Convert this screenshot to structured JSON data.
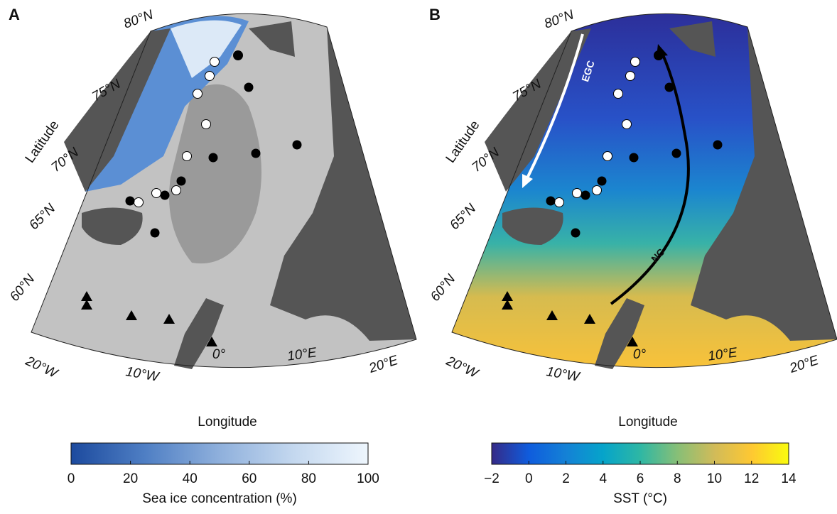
{
  "panels": [
    {
      "label": "A",
      "lat_labels": [
        "80°N",
        "75°N",
        "70°N",
        "65°N",
        "60°N"
      ],
      "lon_labels": [
        "20°W",
        "10°W",
        "0°",
        "10°E",
        "20°E"
      ],
      "x_axis_label": "Longitude",
      "y_axis_label": "Latitude",
      "colorbar": {
        "label": "Sea ice concentration (%)",
        "lim": [
          0,
          100
        ],
        "ticks": [
          0,
          20,
          40,
          60,
          80,
          100
        ],
        "colors": [
          "#1c4a9e",
          "#4f7fc4",
          "#8fb0dc",
          "#c4d8ef",
          "#eef6fd"
        ]
      }
    },
    {
      "label": "B",
      "lat_labels": [
        "80°N",
        "75°N",
        "70°N",
        "65°N",
        "60°N"
      ],
      "lon_labels": [
        "20°W",
        "10°W",
        "0°",
        "10°E",
        "20°E"
      ],
      "x_axis_label": "Longitude",
      "y_axis_label": "Latitude",
      "annotations": [
        "EGC",
        "NC"
      ],
      "colorbar": {
        "label": "SST (°C)",
        "lim": [
          -2,
          14
        ],
        "ticks": [
          {
            "value": -2,
            "label": "−2"
          },
          0,
          2,
          4,
          6,
          8,
          10,
          12,
          14
        ],
        "colors": [
          "#352a87",
          "#0f5cdd",
          "#1481d6",
          "#06a4ca",
          "#2eb7a4",
          "#87bf77",
          "#d1bb59",
          "#fec832",
          "#f9fb0e"
        ]
      }
    }
  ]
}
